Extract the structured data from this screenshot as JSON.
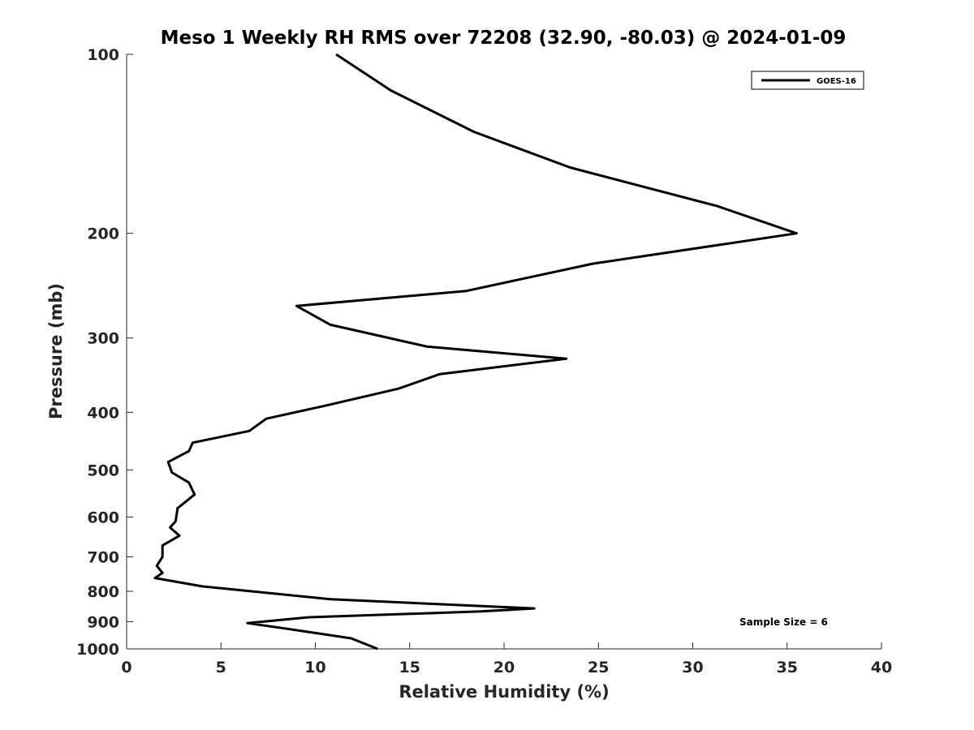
{
  "chart_data": {
    "type": "line",
    "title": "Meso 1 Weekly RH RMS over 72208 (32.90, -80.03) @ 2024-01-09",
    "xlabel": "Relative Humidity (%)",
    "ylabel": "Pressure (mb)",
    "xlim": [
      0,
      40
    ],
    "ylim": [
      100,
      1000
    ],
    "y_scale": "log",
    "y_direction": "reversed",
    "grid": false,
    "legend_position": "top-right",
    "x_ticks": [
      "0",
      "5",
      "10",
      "15",
      "20",
      "25",
      "30",
      "35",
      "40"
    ],
    "y_ticks": [
      "100",
      "200",
      "300",
      "400",
      "500",
      "600",
      "700",
      "800",
      "900",
      "1000"
    ],
    "annotation": "Sample Size = 6",
    "series": [
      {
        "name": "GOES-16",
        "color": "#000000",
        "x": [
          11.1,
          14.0,
          18.4,
          23.5,
          31.3,
          35.5,
          24.7,
          18.0,
          9.0,
          10.8,
          15.9,
          23.3,
          16.6,
          14.4,
          10.5,
          7.4,
          6.5,
          3.5,
          3.3,
          2.2,
          2.4,
          3.3,
          3.6,
          2.7,
          2.6,
          2.3,
          2.8,
          1.9,
          1.9,
          1.6,
          1.9,
          1.5,
          4.0,
          10.8,
          21.6,
          18.8,
          9.6,
          6.4,
          8.5,
          11.9,
          13.3
        ]
      }
    ],
    "pressure_levels": [
      100,
      115,
      135,
      155,
      180,
      200,
      225,
      250,
      265,
      285,
      310,
      325,
      345,
      365,
      390,
      410,
      430,
      450,
      465,
      485,
      505,
      525,
      550,
      580,
      610,
      625,
      645,
      670,
      700,
      725,
      745,
      760,
      785,
      825,
      855,
      865,
      885,
      905,
      925,
      960,
      1000
    ]
  }
}
